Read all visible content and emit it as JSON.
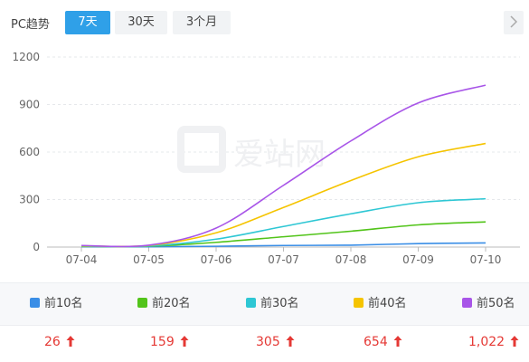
{
  "toolbar": {
    "title": "PC趋势",
    "ranges": [
      "7天",
      "30天",
      "3个月"
    ],
    "active_range": "7天",
    "next_icon": "chevron-right-icon"
  },
  "watermark": {
    "text": "爱站网"
  },
  "colors": {
    "accent": "#2fa0e8",
    "top10": "#3a8ee6",
    "top20": "#52c41a",
    "top30": "#2ec7d4",
    "top40": "#f5c400",
    "top50": "#a855e8",
    "up": "#e53935"
  },
  "chart_data": {
    "type": "line",
    "x": [
      "07-04",
      "07-05",
      "07-06",
      "07-07",
      "07-08",
      "07-09",
      "07-10"
    ],
    "ylim": [
      0,
      1200
    ],
    "yticks": [
      0,
      300,
      600,
      900,
      1200
    ],
    "grid": true,
    "series": [
      {
        "name": "前10名",
        "values": [
          2,
          2,
          5,
          10,
          12,
          22,
          26
        ]
      },
      {
        "name": "前20名",
        "values": [
          4,
          5,
          30,
          65,
          100,
          140,
          159
        ]
      },
      {
        "name": "前30名",
        "values": [
          6,
          7,
          50,
          130,
          210,
          280,
          305
        ]
      },
      {
        "name": "前40名",
        "values": [
          8,
          10,
          90,
          250,
          420,
          570,
          654
        ]
      },
      {
        "name": "前50名",
        "values": [
          10,
          12,
          120,
          390,
          670,
          910,
          1022
        ]
      }
    ]
  },
  "legend": [
    {
      "label": "前10名"
    },
    {
      "label": "前20名"
    },
    {
      "label": "前30名"
    },
    {
      "label": "前40名"
    },
    {
      "label": "前50名"
    }
  ],
  "totals": [
    {
      "value": "26"
    },
    {
      "value": "159"
    },
    {
      "value": "305"
    },
    {
      "value": "654"
    },
    {
      "value": "1,022"
    }
  ]
}
